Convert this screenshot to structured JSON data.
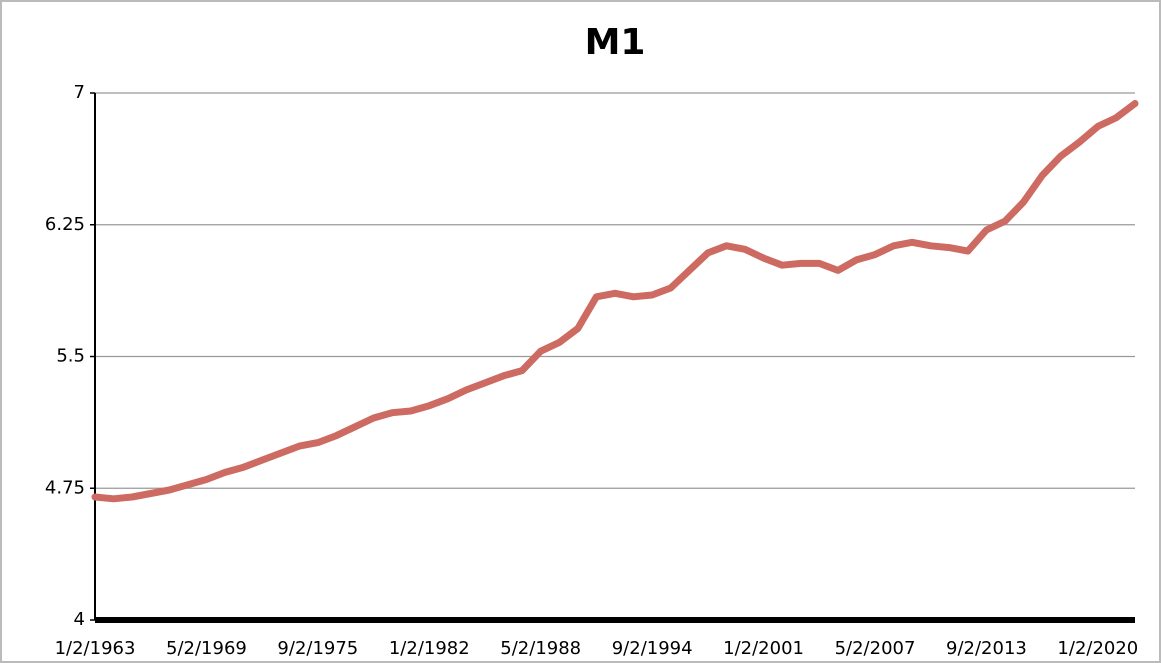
{
  "chart_data": {
    "type": "line",
    "title": "M1",
    "categories": [
      "1/2/1963",
      null,
      null,
      null,
      null,
      null,
      "5/2/1969",
      null,
      null,
      null,
      null,
      null,
      "9/2/1975",
      null,
      null,
      null,
      null,
      null,
      "1/2/1982",
      null,
      null,
      null,
      null,
      null,
      "5/2/1988",
      null,
      null,
      null,
      null,
      null,
      "9/2/1994",
      null,
      null,
      null,
      null,
      null,
      "1/2/2001",
      null,
      null,
      null,
      null,
      null,
      "5/2/2007",
      null,
      null,
      null,
      null,
      null,
      "9/2/2013",
      null,
      null,
      null,
      null,
      null,
      "1/2/2020",
      null,
      null
    ],
    "values": [
      4.7,
      4.69,
      4.7,
      4.72,
      4.74,
      4.77,
      4.8,
      4.84,
      4.87,
      4.91,
      4.95,
      4.99,
      5.01,
      5.05,
      5.1,
      5.15,
      5.18,
      5.19,
      5.22,
      5.26,
      5.31,
      5.35,
      5.39,
      5.42,
      5.53,
      5.58,
      5.66,
      5.84,
      5.86,
      5.84,
      5.85,
      5.89,
      5.99,
      6.09,
      6.13,
      6.11,
      6.06,
      6.02,
      6.03,
      6.03,
      5.99,
      6.05,
      6.08,
      6.13,
      6.15,
      6.13,
      6.12,
      6.1,
      6.22,
      6.27,
      6.38,
      6.53,
      6.64,
      6.72,
      6.81,
      6.86,
      6.94
    ],
    "color": "#cd6a61",
    "ylim": [
      4,
      7
    ],
    "yticks": [
      4,
      4.75,
      5.5,
      6.25,
      7
    ],
    "grid": true
  }
}
